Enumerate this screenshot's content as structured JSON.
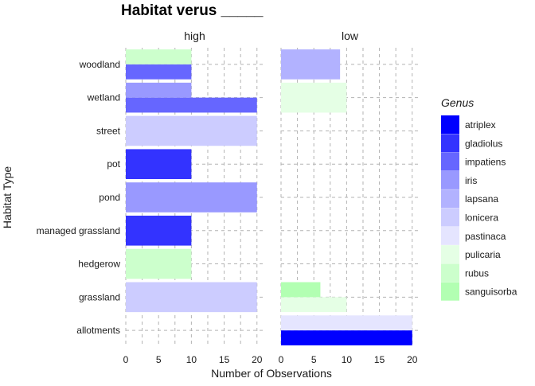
{
  "chart_data": {
    "type": "bar",
    "orientation": "horizontal",
    "stacking": "dodge",
    "title": "Habitat verus _____",
    "xlabel": "Number of Observations",
    "ylabel": "Habitat Type",
    "xlim": [
      0,
      21
    ],
    "x_ticks": [
      "0",
      "5",
      "10",
      "15",
      "20"
    ],
    "grid": true,
    "legend_position": "right",
    "legend_title": "Genus",
    "categories": [
      "allotments",
      "grassland",
      "hedgerow",
      "managed grassland",
      "pond",
      "pot",
      "street",
      "wetland",
      "woodland"
    ],
    "genera": [
      {
        "name": "atriplex",
        "color": "#0000ff"
      },
      {
        "name": "gladiolus",
        "color": "#3333ff"
      },
      {
        "name": "impatiens",
        "color": "#6666ff"
      },
      {
        "name": "iris",
        "color": "#9999ff"
      },
      {
        "name": "lapsana",
        "color": "#b2b2ff"
      },
      {
        "name": "lonicera",
        "color": "#ccccff"
      },
      {
        "name": "pastinaca",
        "color": "#e5e5ff"
      },
      {
        "name": "pulicaria",
        "color": "#e5ffe5"
      },
      {
        "name": "rubus",
        "color": "#ccffcc"
      },
      {
        "name": "sanguisorba",
        "color": "#b2ffb2"
      }
    ],
    "facets": [
      {
        "label": "high",
        "bars": [
          {
            "category": "grassland",
            "genus": "lonicera",
            "value": 20
          },
          {
            "category": "hedgerow",
            "genus": "rubus",
            "value": 10
          },
          {
            "category": "managed grassland",
            "genus": "gladiolus",
            "value": 10
          },
          {
            "category": "pond",
            "genus": "iris",
            "value": 20
          },
          {
            "category": "pot",
            "genus": "gladiolus",
            "value": 10
          },
          {
            "category": "street",
            "genus": "lonicera",
            "value": 20
          },
          {
            "category": "wetland",
            "genus": "impatiens",
            "value": 20
          },
          {
            "category": "wetland",
            "genus": "iris",
            "value": 10
          },
          {
            "category": "woodland",
            "genus": "impatiens",
            "value": 10
          },
          {
            "category": "woodland",
            "genus": "rubus",
            "value": 10
          }
        ]
      },
      {
        "label": "low",
        "bars": [
          {
            "category": "allotments",
            "genus": "atriplex",
            "value": 20
          },
          {
            "category": "allotments",
            "genus": "pastinaca",
            "value": 20
          },
          {
            "category": "grassland",
            "genus": "pulicaria",
            "value": 10
          },
          {
            "category": "grassland",
            "genus": "sanguisorba",
            "value": 6
          },
          {
            "category": "wetland",
            "genus": "pulicaria",
            "value": 10
          },
          {
            "category": "woodland",
            "genus": "lapsana",
            "value": 9
          }
        ]
      }
    ]
  }
}
